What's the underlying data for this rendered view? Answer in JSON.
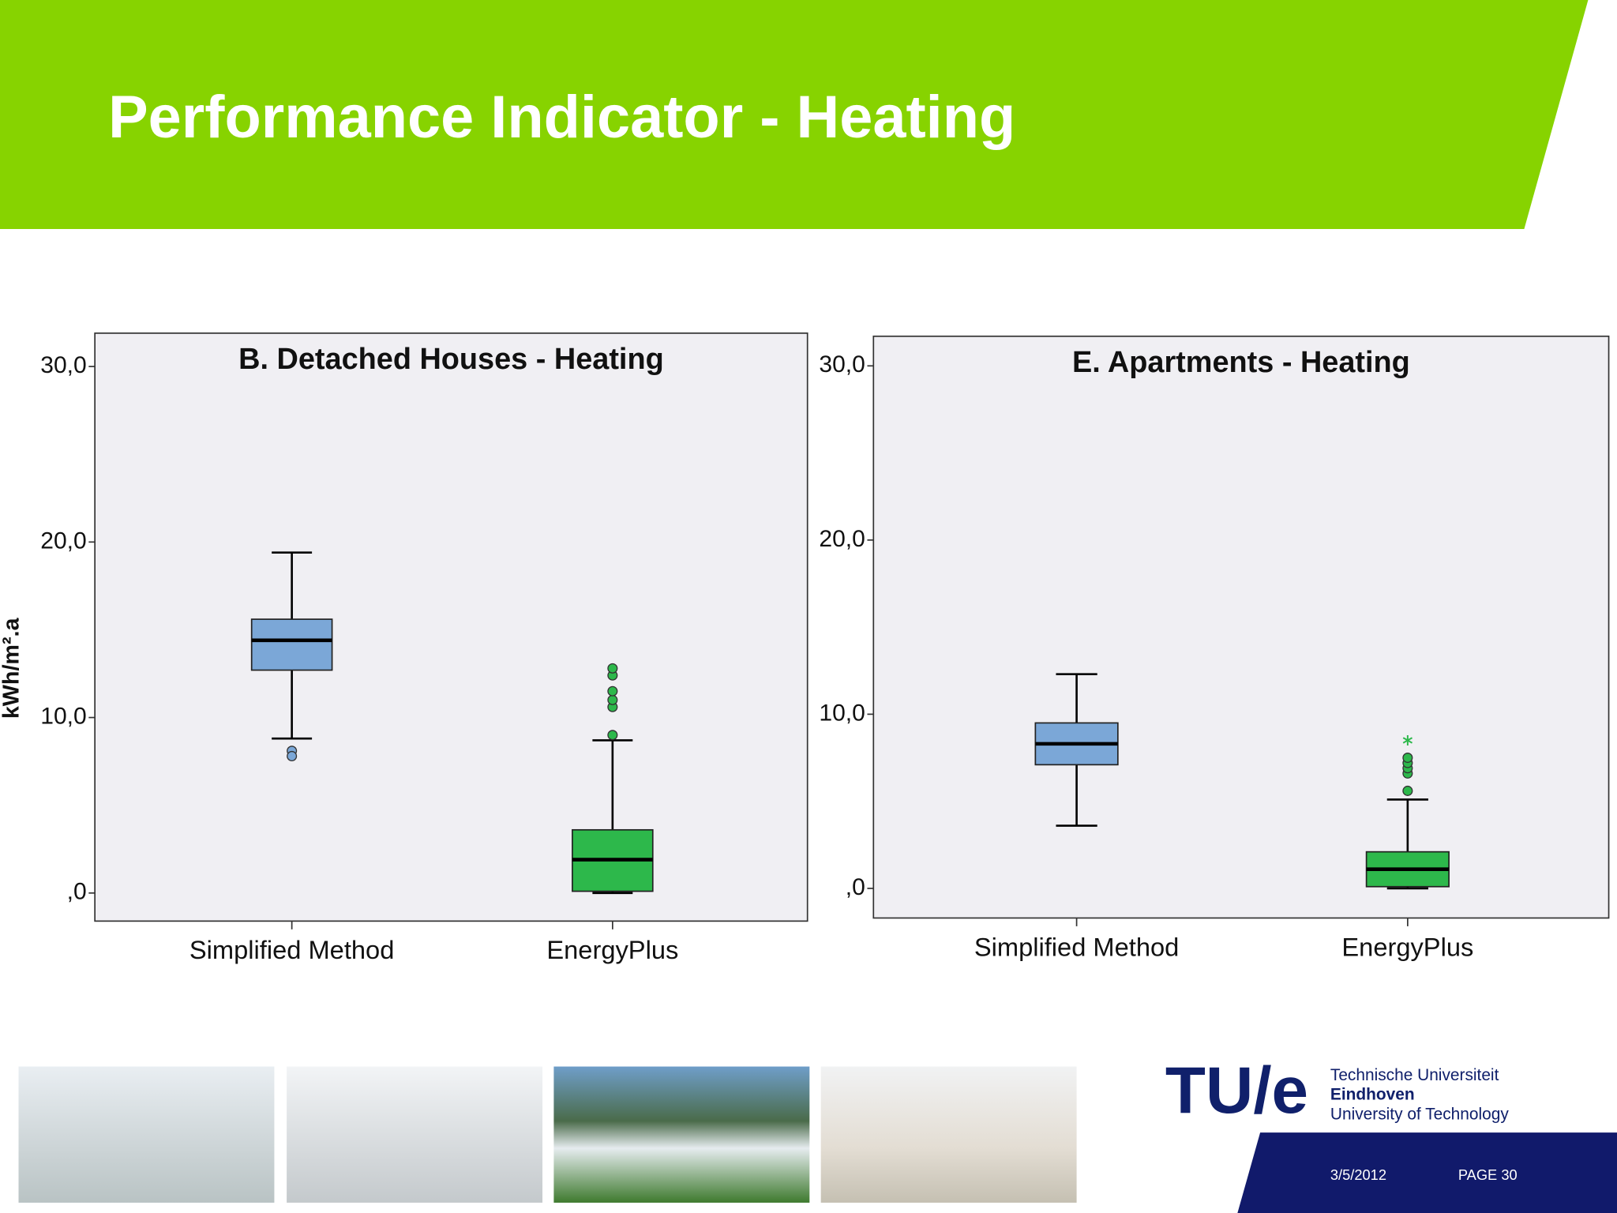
{
  "title": "Performance Indicator - Heating",
  "chart_data": [
    {
      "type": "box",
      "title": "B. Detached Houses - Heating",
      "y_label": "kWh/m².a",
      "categories": [
        "Simplified Method",
        "EnergyPlus"
      ],
      "boxes": [
        {
          "color": "#7ba7d7",
          "whisker_low": 8.8,
          "q1": 12.7,
          "median": 14.4,
          "q3": 15.6,
          "whisker_high": 19.4,
          "outliers": [
            8.1,
            7.8
          ]
        },
        {
          "color": "#2db84b",
          "whisker_low": 0.0,
          "q1": 0.1,
          "median": 1.9,
          "q3": 3.6,
          "whisker_high": 8.7,
          "outliers": [
            9.0,
            10.6,
            11.0,
            11.5,
            12.4,
            12.8
          ]
        }
      ],
      "ylim": [
        -1.6,
        31.9
      ],
      "yticks": [
        {
          "value": 0,
          "label": ",0"
        },
        {
          "value": 10,
          "label": "10,0"
        },
        {
          "value": 20,
          "label": "20,0"
        },
        {
          "value": 30,
          "label": "30,0"
        }
      ]
    },
    {
      "type": "box",
      "title": "E. Apartments - Heating",
      "categories": [
        "Simplified Method",
        "EnergyPlus"
      ],
      "boxes": [
        {
          "color": "#7ba7d7",
          "whisker_low": 3.6,
          "q1": 7.1,
          "median": 8.3,
          "q3": 9.5,
          "whisker_high": 12.3,
          "outliers": []
        },
        {
          "color": "#2db84b",
          "whisker_low": 0.0,
          "q1": 0.1,
          "median": 1.1,
          "q3": 2.1,
          "whisker_high": 5.1,
          "outliers": [
            5.6,
            6.6,
            6.9,
            7.2,
            7.5
          ],
          "extremes": [
            8.5
          ]
        }
      ],
      "ylim": [
        -1.7,
        31.7
      ],
      "yticks": [
        {
          "value": 0,
          "label": ",0"
        },
        {
          "value": 10,
          "label": "10,0"
        },
        {
          "value": 20,
          "label": "20,0"
        },
        {
          "value": 30,
          "label": "30,0"
        }
      ]
    }
  ],
  "logo": {
    "mark": "TU/e",
    "lines": [
      "Technische Universiteit",
      "Eindhoven",
      "University of Technology"
    ]
  },
  "footer": {
    "date": "3/5/2012",
    "page": "PAGE 30"
  }
}
